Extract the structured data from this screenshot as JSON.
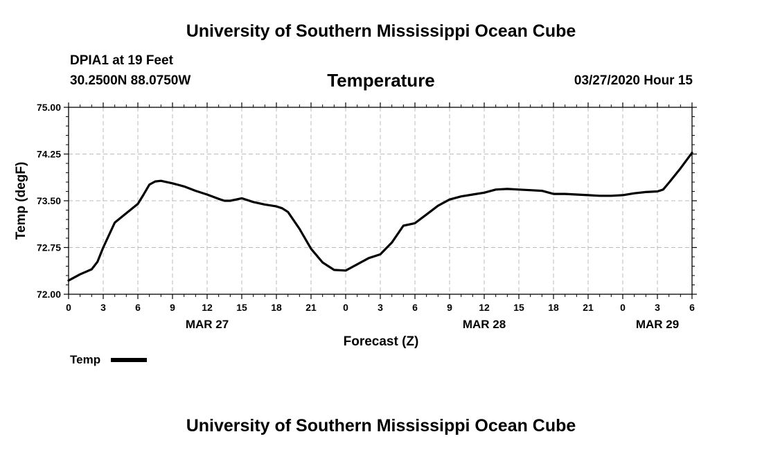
{
  "page": {
    "top_title": "University of Southern Mississippi Ocean Cube",
    "bottom_title": "University of Southern Mississippi Ocean Cube",
    "station": "DPIA1 at 19 Feet",
    "location": "30.2500N 88.0750W",
    "run_label": "03/27/2020 Hour 15"
  },
  "chart_data": {
    "type": "line",
    "title": "Temperature",
    "xlabel": "Forecast (Z)",
    "ylabel": "Temp (degF)",
    "ylim": [
      72.0,
      75.0
    ],
    "yticks": [
      "72.00",
      "72.75",
      "73.50",
      "74.25",
      "75.00"
    ],
    "xlim": [
      0,
      54
    ],
    "xticks": [
      "0",
      "3",
      "6",
      "9",
      "12",
      "15",
      "18",
      "21",
      "0",
      "3",
      "6",
      "9",
      "12",
      "15",
      "18",
      "21",
      "0",
      "3",
      "6"
    ],
    "date_labels": [
      {
        "label": "MAR 27",
        "at_hour": 12
      },
      {
        "label": "MAR 28",
        "at_hour": 36
      },
      {
        "label": "MAR 29",
        "at_hour": 51
      }
    ],
    "grid": true,
    "legend": {
      "position": "bottom-left",
      "entries": [
        "Temp"
      ]
    },
    "series": [
      {
        "name": "Temp",
        "color": "#000000",
        "x": [
          0,
          1,
          2,
          2.5,
          3,
          4,
          5,
          6,
          6.5,
          7,
          7.5,
          8,
          9,
          10,
          11,
          12,
          13,
          13.5,
          14,
          15,
          16,
          17,
          18,
          18.5,
          19,
          20,
          21,
          22,
          23,
          24,
          25,
          26,
          27,
          28,
          29,
          30,
          31,
          32,
          33,
          34,
          35,
          36,
          37,
          38,
          39,
          40,
          41,
          42,
          43,
          44,
          45,
          46,
          47,
          48,
          49,
          50,
          51,
          51.5,
          52,
          53,
          54
        ],
        "values": [
          72.22,
          72.32,
          72.4,
          72.52,
          72.75,
          73.15,
          73.3,
          73.45,
          73.6,
          73.76,
          73.81,
          73.82,
          73.78,
          73.73,
          73.66,
          73.6,
          73.53,
          73.5,
          73.5,
          73.54,
          73.48,
          73.44,
          73.41,
          73.38,
          73.32,
          73.05,
          72.73,
          72.51,
          72.39,
          72.38,
          72.48,
          72.58,
          72.64,
          72.83,
          73.1,
          73.14,
          73.28,
          73.42,
          73.52,
          73.57,
          73.6,
          73.63,
          73.68,
          73.69,
          73.68,
          73.67,
          73.66,
          73.61,
          73.61,
          73.6,
          73.59,
          73.58,
          73.58,
          73.59,
          73.62,
          73.64,
          73.65,
          73.68,
          73.79,
          74.02,
          74.27
        ]
      }
    ]
  }
}
